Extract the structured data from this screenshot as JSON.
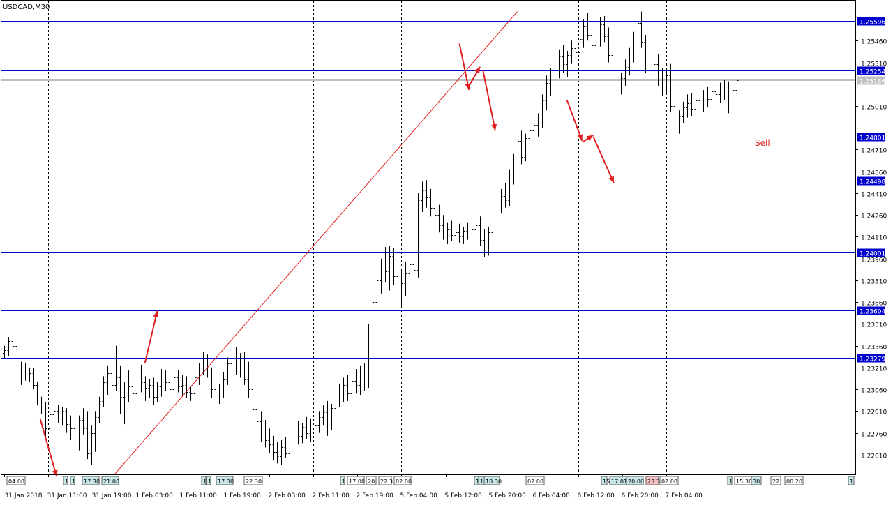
{
  "chart_data": {
    "type": "candlestick-bar",
    "symbol_label": "USDCAD,M30",
    "y_range": [
      1.22475,
      1.25735
    ],
    "x_range_bars": [
      0,
      615
    ],
    "bar_spacing_bars": 1,
    "grid": "vertical-dashed",
    "y_ticks": [
      "1.25460",
      "1.25310",
      "1.25010",
      "1.24710",
      "1.24560",
      "1.24410",
      "1.24260",
      "1.24110",
      "1.23960",
      "1.23810",
      "1.23660",
      "1.23510",
      "1.23360",
      "1.23210",
      "1.23060",
      "1.22910",
      "1.22760",
      "1.22610"
    ],
    "y_tick_values": [
      1.2546,
      1.2531,
      1.2501,
      1.2471,
      1.2456,
      1.2441,
      1.2426,
      1.2411,
      1.2396,
      1.2381,
      1.2366,
      1.2351,
      1.2336,
      1.2321,
      1.2306,
      1.2291,
      1.2276,
      1.2261
    ],
    "x_labels": [
      "31 Jan 2018",
      "31 Jan 11:00",
      "31 Jan 19:00",
      "1 Feb 03:00",
      "1 Feb 11:00",
      "1 Feb 19:00",
      "2 Feb 03:00",
      "2 Feb 11:00",
      "2 Feb 19:00",
      "5 Feb 04:00",
      "5 Feb 12:00",
      "5 Feb 20:00",
      "6 Feb 04:00",
      "6 Feb 12:00",
      "6 Feb 20:00",
      "7 Feb 04:00"
    ],
    "x_label_bars": [
      0,
      32,
      64,
      96,
      128,
      160,
      192,
      224,
      256,
      288,
      320,
      352,
      384,
      416,
      448,
      480
    ],
    "levels": [
      {
        "value": 1.25596,
        "label": "1.25596"
      },
      {
        "value": 1.25254,
        "label": "1.25254"
      },
      {
        "value": 1.24801,
        "label": "1.24801"
      },
      {
        "value": 1.24498,
        "label": "1.24498"
      },
      {
        "value": 1.24001,
        "label": "1.24001"
      },
      {
        "value": 1.23604,
        "label": "1.23604"
      },
      {
        "value": 1.23279,
        "label": "1.23279"
      }
    ],
    "current_price": {
      "value": 1.25186,
      "label": "1.25186"
    },
    "annotation_text": "Sell",
    "time_markers": [
      "04:00",
      "1",
      "1",
      "17:30",
      "21:00",
      "1",
      "1",
      "17:30",
      "22:30",
      "1",
      "17:00",
      "20:",
      "22:3",
      "02:00",
      "1",
      "17",
      "18:30",
      "02:00",
      "15",
      "17:01",
      "20:00",
      "23:3",
      "02:00",
      "1",
      "15:30",
      "30",
      "22:",
      "00:20",
      "1"
    ],
    "prices": [
      [
        1.2331,
        1.2336,
        1.2327,
        1.2333
      ],
      [
        1.2333,
        1.2342,
        1.2329,
        1.2339
      ],
      [
        1.2339,
        1.2349,
        1.2334,
        1.2336
      ],
      [
        1.2336,
        1.2338,
        1.2318,
        1.2321
      ],
      [
        1.2321,
        1.2325,
        1.2309,
        1.2318
      ],
      [
        1.2318,
        1.2324,
        1.2312,
        1.2316
      ],
      [
        1.2316,
        1.2321,
        1.2311,
        1.2317
      ],
      [
        1.2317,
        1.2321,
        1.2306,
        1.2309
      ],
      [
        1.2309,
        1.2311,
        1.2295,
        1.2299
      ],
      [
        1.2299,
        1.2301,
        1.2289,
        1.2294
      ],
      [
        1.2294,
        1.2297,
        1.2272,
        1.2279
      ],
      [
        1.2279,
        1.2296,
        1.2275,
        1.2289
      ],
      [
        1.2289,
        1.2297,
        1.2282,
        1.2291
      ],
      [
        1.2291,
        1.2295,
        1.2283,
        1.2288
      ],
      [
        1.2288,
        1.2294,
        1.2281,
        1.2291
      ],
      [
        1.2291,
        1.2293,
        1.2276,
        1.2282
      ],
      [
        1.2282,
        1.2288,
        1.2271,
        1.2279
      ],
      [
        1.2279,
        1.2284,
        1.2262,
        1.2267
      ],
      [
        1.2267,
        1.2288,
        1.2264,
        1.2285
      ],
      [
        1.2285,
        1.2293,
        1.2275,
        1.2279
      ],
      [
        1.2279,
        1.2291,
        1.2258,
        1.2262
      ],
      [
        1.2262,
        1.2281,
        1.2254,
        1.2276
      ],
      [
        1.2276,
        1.2291,
        1.2263,
        1.2287
      ],
      [
        1.2287,
        1.2301,
        1.2283,
        1.2298
      ],
      [
        1.2298,
        1.2315,
        1.2294,
        1.2311
      ],
      [
        1.2311,
        1.2322,
        1.2302,
        1.2317
      ],
      [
        1.2317,
        1.2324,
        1.2304,
        1.2309
      ],
      [
        1.2309,
        1.2336,
        1.2305,
        1.2314
      ],
      [
        1.2314,
        1.2322,
        1.2289,
        1.2301
      ],
      [
        1.2301,
        1.2311,
        1.2282,
        1.2305
      ],
      [
        1.2305,
        1.2319,
        1.2297,
        1.2308
      ],
      [
        1.2308,
        1.2314,
        1.2296,
        1.2303
      ],
      [
        1.2303,
        1.2322,
        1.23,
        1.2318
      ],
      [
        1.2318,
        1.2323,
        1.2304,
        1.2311
      ],
      [
        1.2311,
        1.2315,
        1.2298,
        1.2307
      ],
      [
        1.2307,
        1.2313,
        1.23,
        1.2309
      ],
      [
        1.2309,
        1.2314,
        1.2295,
        1.2301
      ],
      [
        1.2301,
        1.2311,
        1.2297,
        1.2308
      ],
      [
        1.2308,
        1.232,
        1.2301,
        1.2316
      ],
      [
        1.2316,
        1.2319,
        1.2305,
        1.2311
      ],
      [
        1.2311,
        1.2316,
        1.2302,
        1.2306
      ],
      [
        1.2306,
        1.2318,
        1.2302,
        1.2314
      ],
      [
        1.2314,
        1.2319,
        1.2304,
        1.2308
      ],
      [
        1.2308,
        1.2316,
        1.2301,
        1.2309
      ],
      [
        1.2309,
        1.2315,
        1.23,
        1.2304
      ],
      [
        1.2304,
        1.2308,
        1.2298,
        1.2303
      ],
      [
        1.2303,
        1.2317,
        1.23,
        1.2314
      ],
      [
        1.2314,
        1.2324,
        1.2309,
        1.2321
      ],
      [
        1.2321,
        1.2332,
        1.2316,
        1.2327
      ],
      [
        1.2327,
        1.233,
        1.2314,
        1.2318
      ],
      [
        1.2318,
        1.2321,
        1.23,
        1.2306
      ],
      [
        1.2306,
        1.2318,
        1.2299,
        1.2302
      ],
      [
        1.2302,
        1.231,
        1.2296,
        1.2305
      ],
      [
        1.2305,
        1.2318,
        1.23,
        1.2313
      ],
      [
        1.2313,
        1.2328,
        1.2309,
        1.2324
      ],
      [
        1.2324,
        1.2334,
        1.2319,
        1.2329
      ],
      [
        1.2329,
        1.2335,
        1.2316,
        1.2321
      ],
      [
        1.2321,
        1.2331,
        1.2314,
        1.2327
      ],
      [
        1.2327,
        1.2332,
        1.2309,
        1.2313
      ],
      [
        1.2313,
        1.2325,
        1.23,
        1.2306
      ],
      [
        1.2306,
        1.2311,
        1.2287,
        1.2292
      ],
      [
        1.2292,
        1.2298,
        1.2277,
        1.2284
      ],
      [
        1.2284,
        1.2291,
        1.227,
        1.2278
      ],
      [
        1.2278,
        1.2285,
        1.2266,
        1.2271
      ],
      [
        1.2271,
        1.2279,
        1.2262,
        1.2268
      ],
      [
        1.2268,
        1.2274,
        1.2257,
        1.2263
      ],
      [
        1.2263,
        1.227,
        1.2255,
        1.226
      ],
      [
        1.226,
        1.2271,
        1.2254,
        1.2266
      ],
      [
        1.2266,
        1.2273,
        1.2259,
        1.2262
      ],
      [
        1.2262,
        1.227,
        1.2255,
        1.2267
      ],
      [
        1.2267,
        1.2281,
        1.2262,
        1.2277
      ],
      [
        1.2277,
        1.2284,
        1.2268,
        1.2274
      ],
      [
        1.2274,
        1.2283,
        1.2269,
        1.228
      ],
      [
        1.228,
        1.2287,
        1.2272,
        1.2276
      ],
      [
        1.2276,
        1.2286,
        1.227,
        1.2283
      ],
      [
        1.2283,
        1.2289,
        1.2275,
        1.2281
      ],
      [
        1.2281,
        1.2291,
        1.2276,
        1.2287
      ],
      [
        1.2287,
        1.2295,
        1.2281,
        1.229
      ],
      [
        1.229,
        1.2298,
        1.2274,
        1.2283
      ],
      [
        1.2283,
        1.2296,
        1.2278,
        1.2293
      ],
      [
        1.2293,
        1.2303,
        1.2288,
        1.2299
      ],
      [
        1.2299,
        1.231,
        1.2294,
        1.2305
      ],
      [
        1.2305,
        1.2314,
        1.2297,
        1.2309
      ],
      [
        1.2309,
        1.2316,
        1.2298,
        1.2303
      ],
      [
        1.2303,
        1.2317,
        1.2299,
        1.2312
      ],
      [
        1.2312,
        1.232,
        1.2303,
        1.2309
      ],
      [
        1.2309,
        1.2322,
        1.2302,
        1.2318
      ],
      [
        1.2318,
        1.2324,
        1.2305,
        1.231
      ],
      [
        1.231,
        1.2351,
        1.2307,
        1.2348
      ],
      [
        1.2348,
        1.2371,
        1.2342,
        1.2366
      ],
      [
        1.2366,
        1.2386,
        1.2359,
        1.2381
      ],
      [
        1.2381,
        1.2396,
        1.2372,
        1.2391
      ],
      [
        1.2391,
        1.2404,
        1.238,
        1.2387
      ],
      [
        1.2387,
        1.2405,
        1.2374,
        1.2398
      ],
      [
        1.2398,
        1.2403,
        1.2378,
        1.2384
      ],
      [
        1.2384,
        1.2395,
        1.2366,
        1.2372
      ],
      [
        1.2372,
        1.2389,
        1.2363,
        1.2379
      ],
      [
        1.2379,
        1.2394,
        1.237,
        1.2386
      ],
      [
        1.2386,
        1.2398,
        1.238,
        1.2392
      ],
      [
        1.2392,
        1.2397,
        1.2382,
        1.2388
      ],
      [
        1.2388,
        1.2441,
        1.2383,
        1.2436
      ],
      [
        1.2436,
        1.2449,
        1.2428,
        1.2443
      ],
      [
        1.2443,
        1.245,
        1.2431,
        1.2438
      ],
      [
        1.2438,
        1.2444,
        1.2425,
        1.2431
      ],
      [
        1.2431,
        1.2437,
        1.242,
        1.2426
      ],
      [
        1.2426,
        1.2433,
        1.2414,
        1.2419
      ],
      [
        1.2419,
        1.2426,
        1.2409,
        1.2413
      ],
      [
        1.2413,
        1.2421,
        1.2406,
        1.2416
      ],
      [
        1.2416,
        1.2422,
        1.2408,
        1.2412
      ],
      [
        1.2412,
        1.2419,
        1.2405,
        1.2414
      ],
      [
        1.2414,
        1.242,
        1.2407,
        1.2411
      ],
      [
        1.2411,
        1.2418,
        1.2406,
        1.2415
      ],
      [
        1.2415,
        1.2421,
        1.2409,
        1.2413
      ],
      [
        1.2413,
        1.242,
        1.2407,
        1.2416
      ],
      [
        1.2416,
        1.2424,
        1.241,
        1.2419
      ],
      [
        1.2419,
        1.2425,
        1.2405,
        1.2409
      ],
      [
        1.2409,
        1.2416,
        1.2397,
        1.2402
      ],
      [
        1.2402,
        1.2418,
        1.2398,
        1.2414
      ],
      [
        1.2414,
        1.2428,
        1.2409,
        1.2424
      ],
      [
        1.2424,
        1.2438,
        1.2419,
        1.2434
      ],
      [
        1.2434,
        1.2444,
        1.2427,
        1.2439
      ],
      [
        1.2439,
        1.2448,
        1.2431,
        1.2436
      ],
      [
        1.2436,
        1.2457,
        1.2432,
        1.2453
      ],
      [
        1.2453,
        1.2468,
        1.2447,
        1.2464
      ],
      [
        1.2464,
        1.2481,
        1.2458,
        1.2477
      ],
      [
        1.2477,
        1.2484,
        1.2461,
        1.2466
      ],
      [
        1.2466,
        1.2482,
        1.2463,
        1.2479
      ],
      [
        1.2479,
        1.2488,
        1.2471,
        1.2484
      ],
      [
        1.2484,
        1.2492,
        1.2478,
        1.2488
      ],
      [
        1.2488,
        1.2496,
        1.248,
        1.2491
      ],
      [
        1.2491,
        1.2509,
        1.2486,
        1.2505
      ],
      [
        1.2505,
        1.2522,
        1.2498,
        1.2517
      ],
      [
        1.2517,
        1.2527,
        1.2508,
        1.2513
      ],
      [
        1.2513,
        1.2531,
        1.2509,
        1.2526
      ],
      [
        1.2526,
        1.254,
        1.252,
        1.2535
      ],
      [
        1.2535,
        1.2543,
        1.2524,
        1.253
      ],
      [
        1.253,
        1.2539,
        1.2521,
        1.2536
      ],
      [
        1.2536,
        1.2546,
        1.253,
        1.2541
      ],
      [
        1.2541,
        1.2549,
        1.2533,
        1.2538
      ],
      [
        1.2538,
        1.2552,
        1.2534,
        1.2547
      ],
      [
        1.2547,
        1.2561,
        1.2541,
        1.2556
      ],
      [
        1.2556,
        1.2565,
        1.2546,
        1.255
      ],
      [
        1.255,
        1.2559,
        1.2538,
        1.2543
      ],
      [
        1.2543,
        1.2552,
        1.2535,
        1.2548
      ],
      [
        1.2548,
        1.2562,
        1.2542,
        1.2557
      ],
      [
        1.2557,
        1.2563,
        1.2545,
        1.2549
      ],
      [
        1.2549,
        1.2555,
        1.2531,
        1.2536
      ],
      [
        1.2536,
        1.2542,
        1.2524,
        1.2529
      ],
      [
        1.2529,
        1.2535,
        1.2508,
        1.2513
      ],
      [
        1.2513,
        1.2524,
        1.2509,
        1.252
      ],
      [
        1.252,
        1.2533,
        1.2515,
        1.2528
      ],
      [
        1.2528,
        1.2541,
        1.2522,
        1.2537
      ],
      [
        1.2537,
        1.2552,
        1.2531,
        1.2548
      ],
      [
        1.2548,
        1.2562,
        1.2543,
        1.2558
      ],
      [
        1.2558,
        1.2566,
        1.2541,
        1.2545
      ],
      [
        1.2545,
        1.255,
        1.2524,
        1.2529
      ],
      [
        1.2529,
        1.2537,
        1.2513,
        1.2518
      ],
      [
        1.2518,
        1.2534,
        1.2514,
        1.253
      ],
      [
        1.253,
        1.2537,
        1.2515,
        1.2521
      ],
      [
        1.2521,
        1.2527,
        1.2508,
        1.2513
      ],
      [
        1.2513,
        1.2526,
        1.2509,
        1.2522
      ],
      [
        1.2522,
        1.253,
        1.2497,
        1.2501
      ],
      [
        1.2501,
        1.2506,
        1.2486,
        1.2491
      ],
      [
        1.2491,
        1.2498,
        1.2482,
        1.2494
      ],
      [
        1.2494,
        1.2504,
        1.2489,
        1.25
      ],
      [
        1.25,
        1.2509,
        1.2493,
        1.2503
      ],
      [
        1.2503,
        1.251,
        1.2494,
        1.2499
      ],
      [
        1.2499,
        1.2508,
        1.2492,
        1.2505
      ],
      [
        1.2505,
        1.2511,
        1.2496,
        1.2502
      ],
      [
        1.2502,
        1.2512,
        1.2497,
        1.2508
      ],
      [
        1.2508,
        1.2514,
        1.25,
        1.2506
      ],
      [
        1.2506,
        1.2515,
        1.2501,
        1.2511
      ],
      [
        1.2511,
        1.2516,
        1.2504,
        1.2509
      ],
      [
        1.2509,
        1.2517,
        1.2503,
        1.2513
      ],
      [
        1.2513,
        1.2519,
        1.2505,
        1.251
      ],
      [
        1.251,
        1.2518,
        1.2496,
        1.2502
      ],
      [
        1.2502,
        1.2514,
        1.2498,
        1.2512
      ],
      [
        1.2512,
        1.2523,
        1.2508,
        1.2519
      ]
    ],
    "trendline": {
      "from": [
        80,
        1.22475
      ],
      "to": [
        372,
        1.2566
      ]
    },
    "arrows": [
      {
        "from": [
          26,
          1.2286
        ],
        "to": [
          38,
          1.2246
        ]
      },
      {
        "from": [
          102,
          1.2324
        ],
        "to": [
          111,
          1.236
        ]
      },
      {
        "from": [
          330,
          1.2544
        ],
        "to": [
          337,
          1.2512
        ]
      },
      {
        "from": [
          337,
          1.2515
        ],
        "to": [
          345,
          1.2528
        ]
      },
      {
        "from": [
          347,
          1.2526
        ],
        "to": [
          356,
          1.2484
        ]
      },
      {
        "from": [
          408,
          1.2505
        ],
        "to": [
          419,
          1.2477
        ]
      },
      {
        "from": [
          419,
          1.2476
        ],
        "to": [
          427,
          1.2481
        ]
      },
      {
        "from": [
          427,
          1.248
        ],
        "to": [
          442,
          1.2448
        ]
      }
    ]
  }
}
